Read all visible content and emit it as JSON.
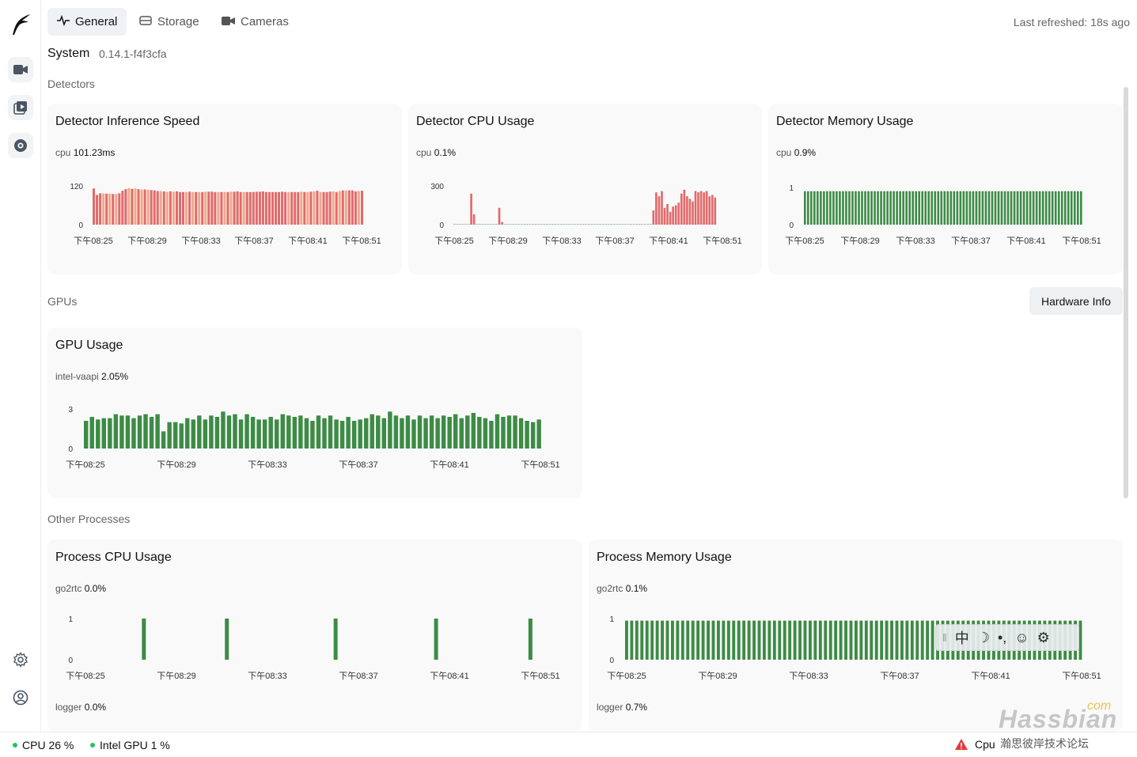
{
  "tabs": [
    {
      "label": "General",
      "icon": "activity-icon",
      "active": true
    },
    {
      "label": "Storage",
      "icon": "storage-icon",
      "active": false
    },
    {
      "label": "Cameras",
      "icon": "camera-icon",
      "active": false
    }
  ],
  "refreshed": "Last refreshed: 18s ago",
  "system": {
    "title": "System",
    "version": "0.14.1-f4f3cfa"
  },
  "sections": {
    "detectors": "Detectors",
    "gpus": "GPUs",
    "other": "Other Processes"
  },
  "hardware_info_button": "Hardware Info",
  "colors": {
    "green": "#3d8b45",
    "red": "#e26a6a",
    "orange": "#f0a98a",
    "accent": "#22c55e",
    "warning": "#e53935"
  },
  "cards": {
    "inference": {
      "title": "Detector Inference Speed",
      "series": "cpu",
      "value": "101.23ms"
    },
    "det_cpu": {
      "title": "Detector CPU Usage",
      "series": "cpu",
      "value": "0.1%"
    },
    "det_mem": {
      "title": "Detector Memory Usage",
      "series": "cpu",
      "value": "0.9%"
    },
    "gpu": {
      "title": "GPU Usage",
      "series": "intel-vaapi",
      "value": "2.05%"
    },
    "proc_cpu": {
      "title": "Process CPU Usage",
      "series": "go2rtc",
      "value": "0.0%",
      "series2": "logger",
      "value2": "0.0%"
    },
    "proc_mem": {
      "title": "Process Memory Usage",
      "series": "go2rtc",
      "value": "0.1%",
      "series2": "logger",
      "value2": "0.7%"
    }
  },
  "statusbar": {
    "cpu": "CPU 26 %",
    "gpu": "Intel GPU 1 %",
    "warning": "Cpu"
  },
  "ime": {
    "chars": [
      "中",
      "☽",
      "•,",
      "☺",
      "⚙"
    ]
  },
  "watermark": {
    "text": "Hassbian",
    "com": "com",
    "cn": "瀚思彼岸技术论坛"
  },
  "chart_data": [
    {
      "type": "bar",
      "name": "inference",
      "x_tick_labels": [
        "下午08:25",
        "下午08:29",
        "下午08:33",
        "下午08:37",
        "下午08:41",
        "下午08:51"
      ],
      "y_tick_labels": [
        "0",
        "120"
      ],
      "ylim": [
        0,
        120
      ],
      "values": [
        112,
        92,
        97,
        97,
        96,
        96,
        95,
        95,
        97,
        105,
        110,
        113,
        111,
        112,
        110,
        109,
        109,
        108,
        107,
        106,
        104,
        104,
        103,
        102,
        103,
        102,
        103,
        101,
        101,
        101,
        102,
        101,
        101,
        101,
        101,
        102,
        102,
        102,
        101,
        101,
        101,
        101,
        101,
        102,
        102,
        103,
        101,
        101,
        101,
        101,
        101,
        102,
        102,
        103,
        101,
        101,
        101,
        101,
        101,
        102,
        101,
        101,
        101,
        101,
        101,
        102,
        101,
        101,
        102,
        103,
        105,
        101,
        101,
        101,
        102,
        103,
        101,
        104,
        106,
        106,
        106,
        106,
        103,
        104,
        105
      ],
      "colors": "mixed"
    },
    {
      "type": "bar",
      "name": "det_cpu",
      "x_tick_labels": [
        "下午08:25",
        "下午08:29",
        "下午08:33",
        "下午08:37",
        "下午08:41",
        "下午08:51"
      ],
      "y_tick_labels": [
        "0",
        "300"
      ],
      "ylim": [
        0,
        300
      ],
      "values": [
        0,
        0,
        0,
        0,
        0,
        0,
        240,
        80,
        0,
        0,
        0,
        0,
        0,
        0,
        0,
        0,
        130,
        20,
        0,
        0,
        0,
        0,
        0,
        0,
        0,
        0,
        0,
        0,
        0,
        0,
        0,
        0,
        0,
        0,
        0,
        0,
        0,
        0,
        0,
        0,
        0,
        0,
        0,
        0,
        0,
        0,
        0,
        0,
        0,
        0,
        0,
        0,
        0,
        0,
        0,
        0,
        0,
        0,
        0,
        0,
        0,
        0,
        0,
        0,
        0,
        0,
        0,
        0,
        0,
        0,
        0,
        110,
        250,
        220,
        260,
        130,
        160,
        100,
        140,
        150,
        170,
        240,
        270,
        220,
        200,
        180,
        260,
        250,
        260,
        250,
        260,
        220,
        230,
        210
      ],
      "colors": "red"
    },
    {
      "type": "bar",
      "name": "det_mem",
      "x_tick_labels": [
        "下午08:25",
        "下午08:29",
        "下午08:33",
        "下午08:37",
        "下午08:41",
        "下午08:51"
      ],
      "y_tick_labels": [
        "0",
        "1"
      ],
      "ylim": [
        0,
        1
      ],
      "values_constant": 0.9,
      "count": 88,
      "colors": "green"
    },
    {
      "type": "bar",
      "name": "gpu",
      "x_tick_labels": [
        "下午08:25",
        "下午08:29",
        "下午08:33",
        "下午08:37",
        "下午08:41",
        "下午08:51"
      ],
      "y_tick_labels": [
        "0",
        "3"
      ],
      "ylim": [
        0,
        3
      ],
      "values": [
        2.1,
        2.4,
        2.2,
        2.3,
        2.3,
        2.6,
        2.5,
        2.5,
        2.3,
        2.5,
        2.6,
        2.4,
        2.6,
        1.3,
        2.0,
        2.0,
        1.9,
        2.3,
        2.2,
        2.5,
        2.2,
        2.5,
        2.4,
        2.8,
        2.5,
        2.6,
        2.2,
        2.6,
        2.4,
        2.2,
        2.2,
        2.4,
        2.2,
        2.6,
        2.5,
        2.4,
        2.5,
        2.3,
        2.1,
        2.5,
        2.3,
        2.5,
        2.2,
        2.1,
        2.4,
        2.1,
        2.2,
        2.3,
        2.6,
        2.5,
        2.3,
        2.8,
        2.5,
        2.3,
        2.5,
        2.2,
        2.5,
        2.3,
        2.5,
        2.3,
        2.5,
        2.4,
        2.6,
        2.3,
        2.5,
        2.7,
        2.4,
        2.3,
        2.1,
        2.6,
        2.4,
        2.5,
        2.5,
        2.3,
        2.1,
        2.0,
        2.2
      ],
      "colors": "green"
    },
    {
      "type": "bar",
      "name": "proc_cpu",
      "x_tick_labels": [
        "下午08:25",
        "下午08:29",
        "下午08:33",
        "下午08:37",
        "下午08:41",
        "下午08:51"
      ],
      "y_tick_labels": [
        "0",
        "1"
      ],
      "ylim": [
        0,
        1
      ],
      "spikes_at_fraction": [
        0.093,
        0.283,
        0.532,
        0.762,
        0.978
      ],
      "count": 100,
      "colors": "green"
    },
    {
      "type": "bar",
      "name": "proc_mem",
      "x_tick_labels": [
        "下午08:25",
        "下午08:29",
        "下午08:33",
        "下午08:37",
        "下午08:41",
        "下午08:51"
      ],
      "y_tick_labels": [
        "0",
        "1"
      ],
      "ylim": [
        0,
        1
      ],
      "values_constant": 0.95,
      "count": 90,
      "colors": "green"
    }
  ]
}
